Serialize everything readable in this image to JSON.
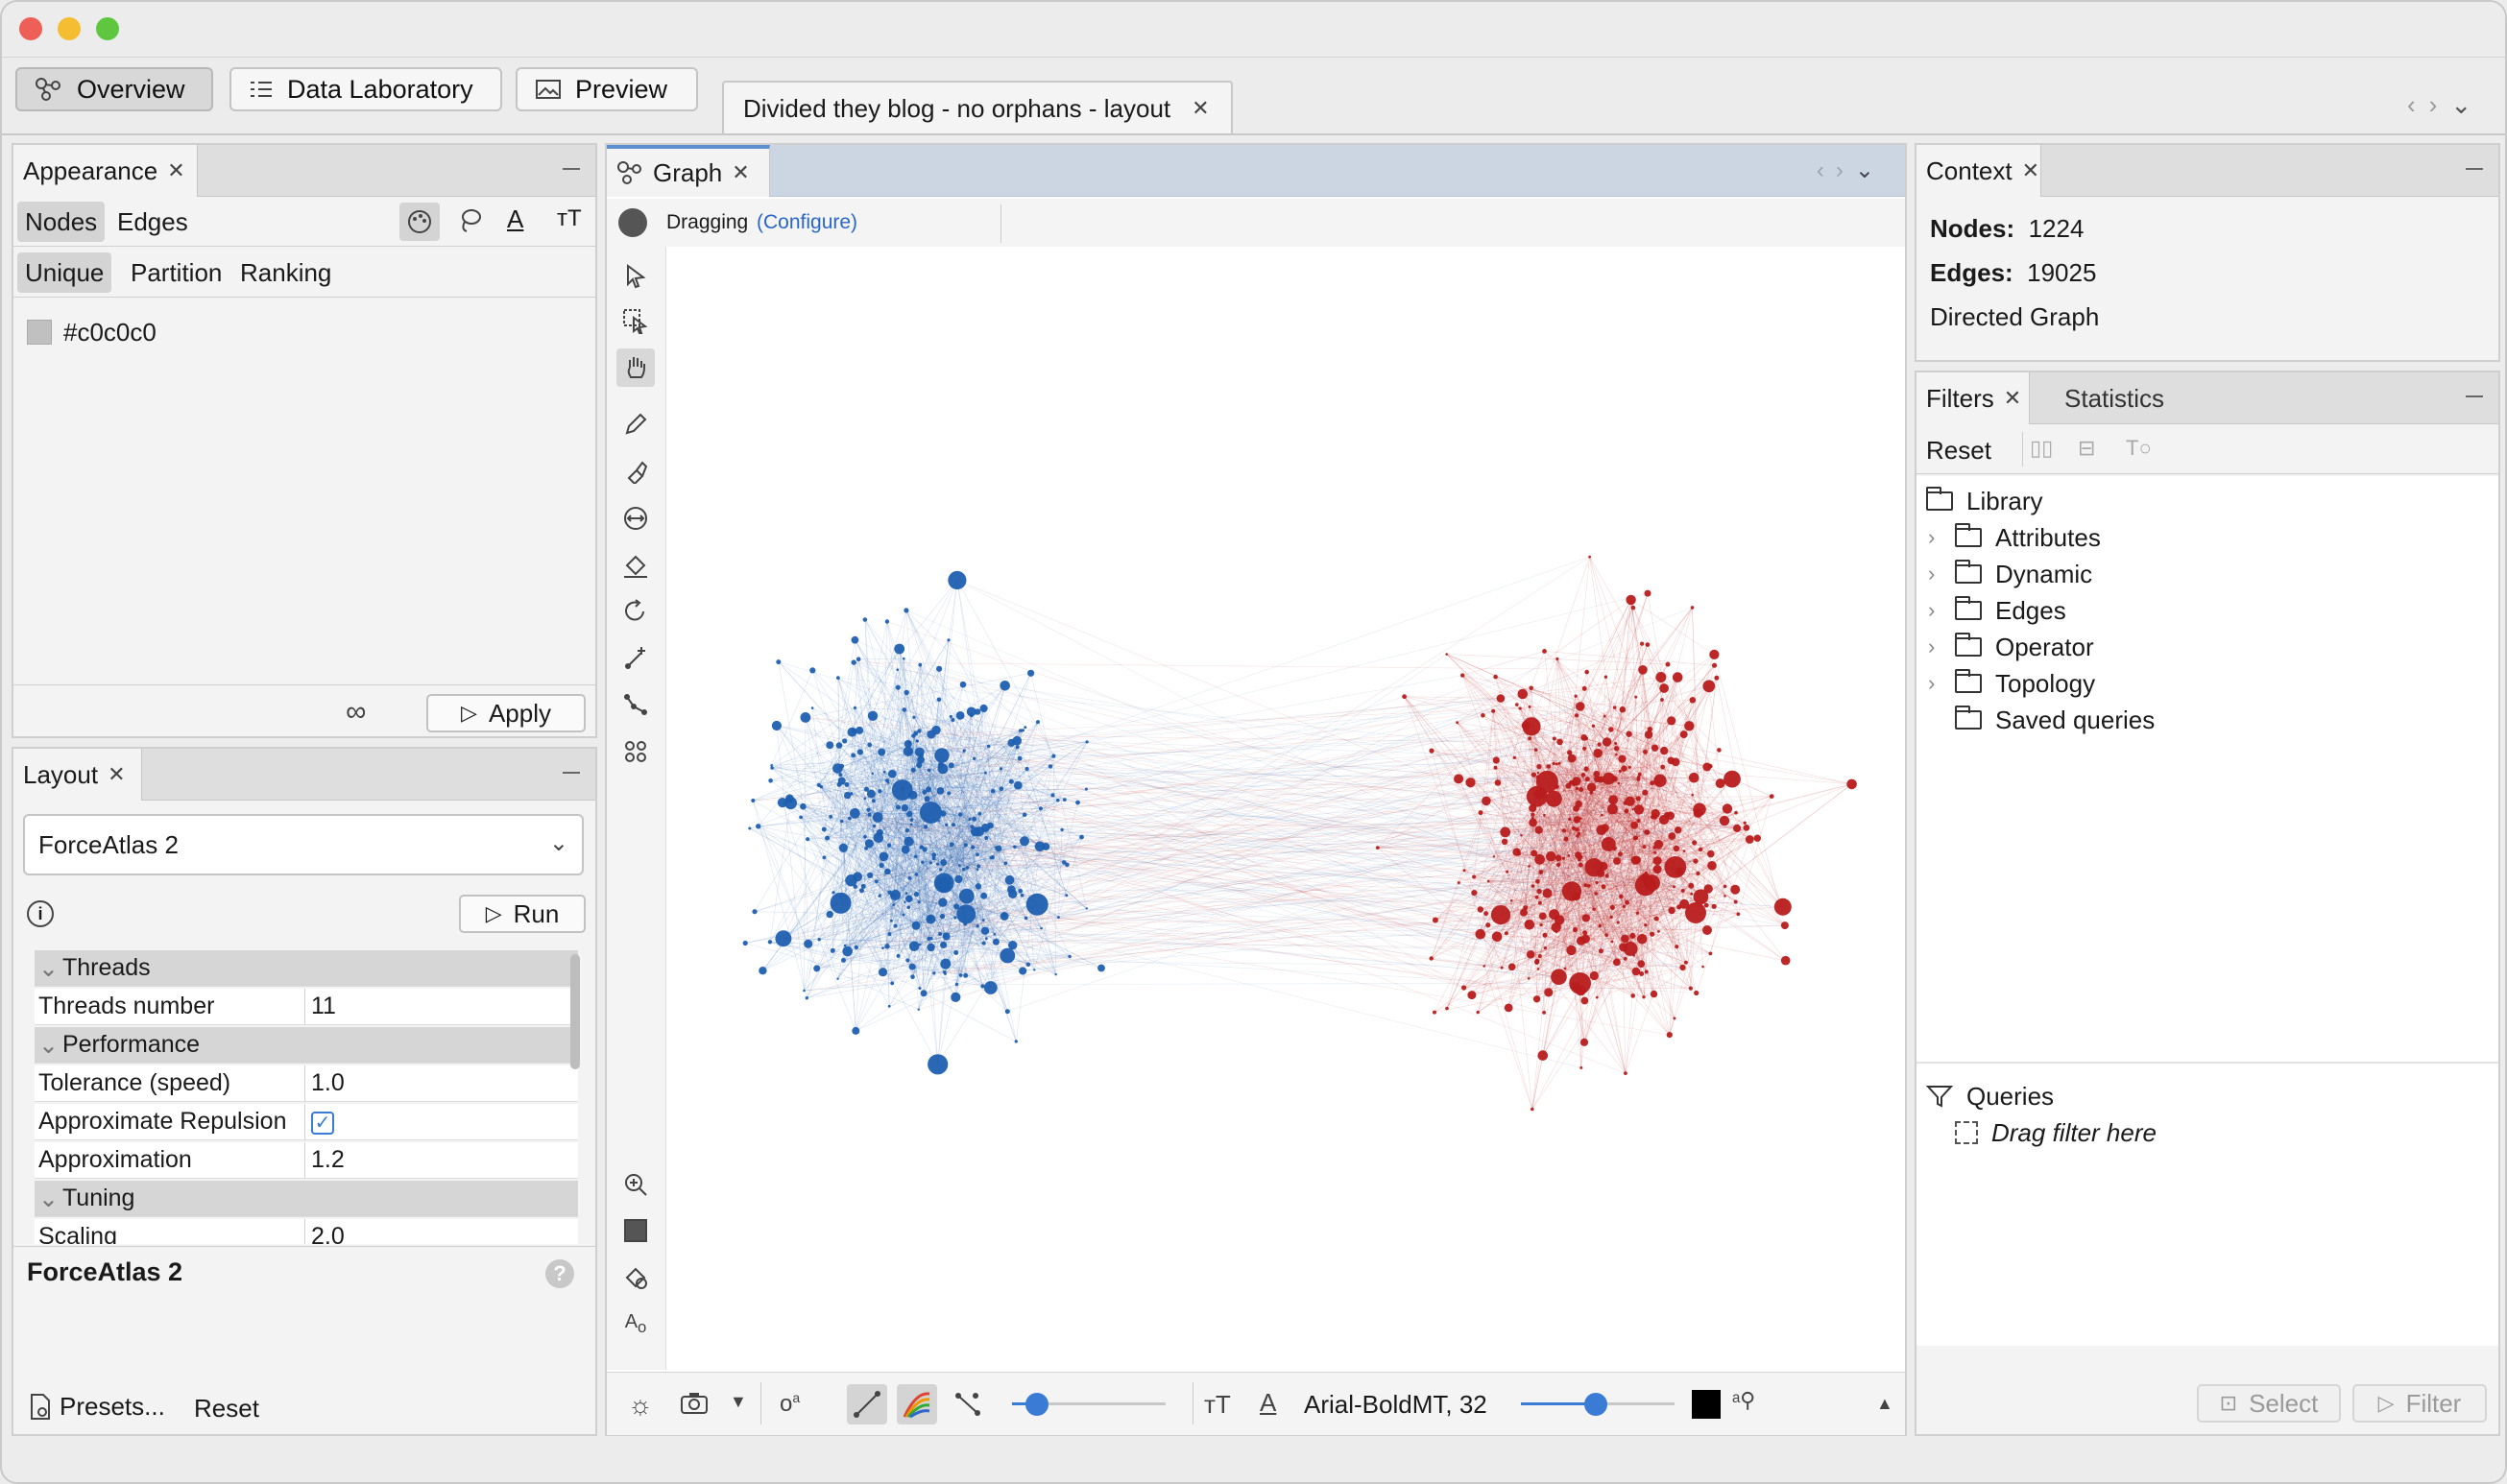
{
  "workspace": {
    "overview_label": "Overview",
    "data_lab_label": "Data Laboratory",
    "preview_label": "Preview",
    "doc_tab_label": "Divided they blog - no orphans - layout"
  },
  "appearance": {
    "title": "Appearance",
    "nodes_label": "Nodes",
    "edges_label": "Edges",
    "unique_label": "Unique",
    "partition_label": "Partition",
    "ranking_label": "Ranking",
    "color_value": "#c0c0c0",
    "apply_label": "Apply"
  },
  "layout": {
    "title": "Layout",
    "algorithm": "ForceAtlas 2",
    "run_label": "Run",
    "properties": [
      {
        "key": "Threads",
        "value": "",
        "category": true
      },
      {
        "key": "Threads number",
        "value": "11",
        "category": false
      },
      {
        "key": "Performance",
        "value": "",
        "category": true
      },
      {
        "key": "Tolerance (speed)",
        "value": "1.0",
        "category": false
      },
      {
        "key": "Approximate Repulsion",
        "value": "",
        "category": false,
        "checkbox": true
      },
      {
        "key": "Approximation",
        "value": "1.2",
        "category": false
      },
      {
        "key": "Tuning",
        "value": "",
        "category": true
      },
      {
        "key": "Scaling",
        "value": "2.0",
        "category": false
      }
    ],
    "description_title": "ForceAtlas 2",
    "presets_label": "Presets...",
    "reset_label": "Reset"
  },
  "graph": {
    "tab_label": "Graph",
    "mode_label": "Dragging",
    "configure_label": "(Configure)",
    "font_label": "Arial-BoldMT, 32",
    "colors": {
      "left": "#1f5fb0",
      "right": "#b81c1c",
      "bg": "#ffffff"
    }
  },
  "context": {
    "title": "Context",
    "nodes_key": "Nodes:",
    "nodes_value": "1224",
    "edges_key": "Edges:",
    "edges_value": "19025",
    "graph_type": "Directed Graph"
  },
  "filters": {
    "title": "Filters",
    "statistics_label": "Statistics",
    "reset_label": "Reset",
    "library_label": "Library",
    "folders": [
      "Attributes",
      "Dynamic",
      "Edges",
      "Operator",
      "Topology",
      "Saved queries"
    ],
    "queries_label": "Queries",
    "drag_hint": "Drag filter here",
    "select_label": "Select",
    "filter_label": "Filter"
  },
  "icons": [
    "network-icon",
    "grid-icon",
    "image-icon",
    "palette-icon",
    "lasso-icon",
    "text-color-icon",
    "text-size-icon",
    "pointer-icon",
    "rect-select-icon",
    "hand-icon",
    "pencil-icon",
    "brush-icon",
    "resize-icon",
    "paint-bucket-icon",
    "rotate-icon",
    "add-edge-icon",
    "path-icon",
    "cluster-icon",
    "zoom-icon",
    "square-icon",
    "shape-icon",
    "label-icon",
    "sun-icon",
    "camera-icon",
    "folder-icon",
    "funnel-icon"
  ]
}
